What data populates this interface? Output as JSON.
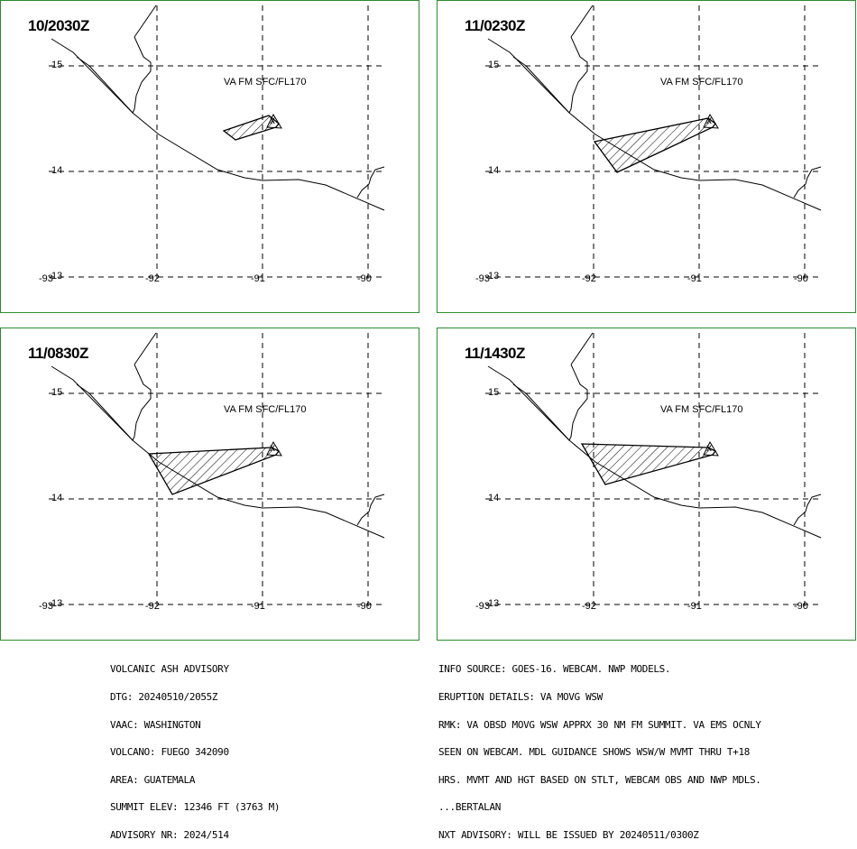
{
  "panels": [
    {
      "time": "10/2030Z",
      "label": "VA FM SFC/FL170"
    },
    {
      "time": "11/0230Z",
      "label": "VA FM SFC/FL170"
    },
    {
      "time": "11/0830Z",
      "label": "VA FM SFC/FL170"
    },
    {
      "time": "11/1430Z",
      "label": "VA FM SFC/FL170"
    }
  ],
  "grid_labels": {
    "lat_15": "15",
    "lat_14": "14",
    "lat_13": "13",
    "lon_93": "-93",
    "lon_92": "-92",
    "lon_91": "-91",
    "lon_90": "-90"
  },
  "volcano_marker": "x",
  "advisory_left": [
    "VOLCANIC ASH ADVISORY",
    "DTG: 20240510/2055Z",
    "VAAC: WASHINGTON",
    "VOLCANO: FUEGO 342090",
    "AREA: GUATEMALA",
    "SUMMIT ELEV: 12346 FT (3763 M)",
    "ADVISORY NR: 2024/514"
  ],
  "advisory_right": [
    "INFO SOURCE: GOES-16. WEBCAM. NWP MODELS.",
    "ERUPTION DETAILS: VA MOVG WSW",
    "RMK: VA OBSD MOVG WSW APPRX 30 NM FM SUMMIT. VA EMS OCNLY",
    "SEEN ON WEBCAM. MDL GUIDANCE SHOWS WSW/W MVMT THRU T+18",
    "HRS. MVMT AND HGT BASED ON STLT, WEBCAM OBS AND NWP MDLS.",
    "...BERTALAN",
    "NXT ADVISORY: WILL BE ISSUED BY 20240511/0300Z"
  ],
  "colors": {
    "border": "#2e8b2e",
    "ink": "#000000"
  }
}
